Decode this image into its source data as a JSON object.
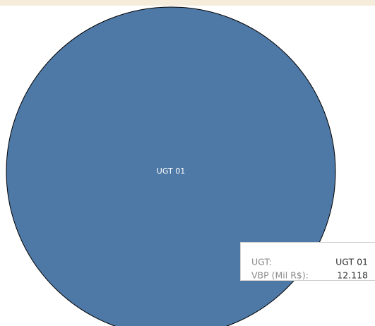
{
  "chart_data": {
    "type": "pie",
    "categories": [
      "UGT 01"
    ],
    "values": [
      12118
    ],
    "value_labels": [
      "12.118"
    ],
    "colors": [
      "#4e79a7"
    ],
    "tooltip_fields": [
      "UGT:",
      "VBP (Mil R$):"
    ]
  }
}
